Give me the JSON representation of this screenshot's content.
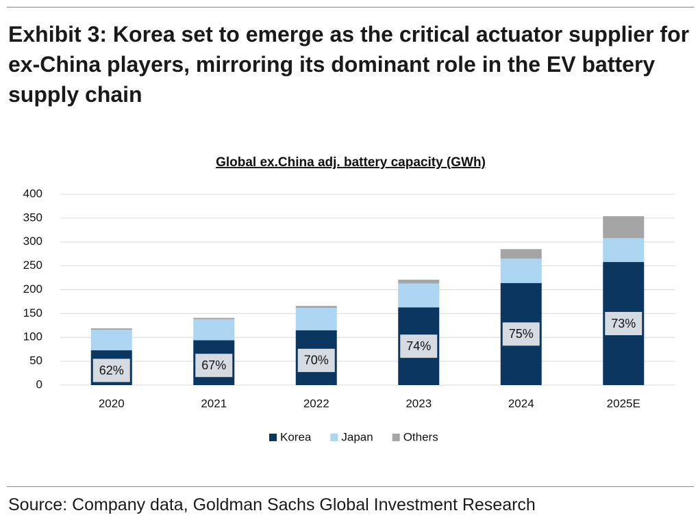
{
  "chart_data": {
    "type": "stacked_bar",
    "title": "Exhibit 3: Korea set to emerge as the critical actuator supplier for ex-China players, mirroring its dominant role in the EV battery supply chain",
    "subtitle": "Global ex.China adj. battery capacity (GWh)",
    "source": "Source: Company data, Goldman Sachs Global Investment Research",
    "categories": [
      "2020",
      "2021",
      "2022",
      "2023",
      "2024",
      "2025E"
    ],
    "series": [
      {
        "name": "Korea",
        "color": "#0b3660",
        "values": [
          73,
          94,
          115,
          163,
          214,
          258
        ]
      },
      {
        "name": "Japan",
        "color": "#acd5f2",
        "values": [
          43,
          44,
          47,
          50,
          51,
          50
        ]
      },
      {
        "name": "Others",
        "color": "#a5a5a5",
        "values": [
          3,
          3,
          4,
          8,
          20,
          46
        ]
      }
    ],
    "korea_share": {
      "values": [
        62,
        67,
        70,
        74,
        75,
        73
      ],
      "value_labels": [
        "62%",
        "67%",
        "70%",
        "74%",
        "75%",
        "73%"
      ]
    },
    "ylim": [
      0,
      400
    ],
    "yticks": [
      0,
      50,
      100,
      150,
      200,
      250,
      300,
      350,
      400
    ],
    "grid": true,
    "legend": "bottom"
  }
}
